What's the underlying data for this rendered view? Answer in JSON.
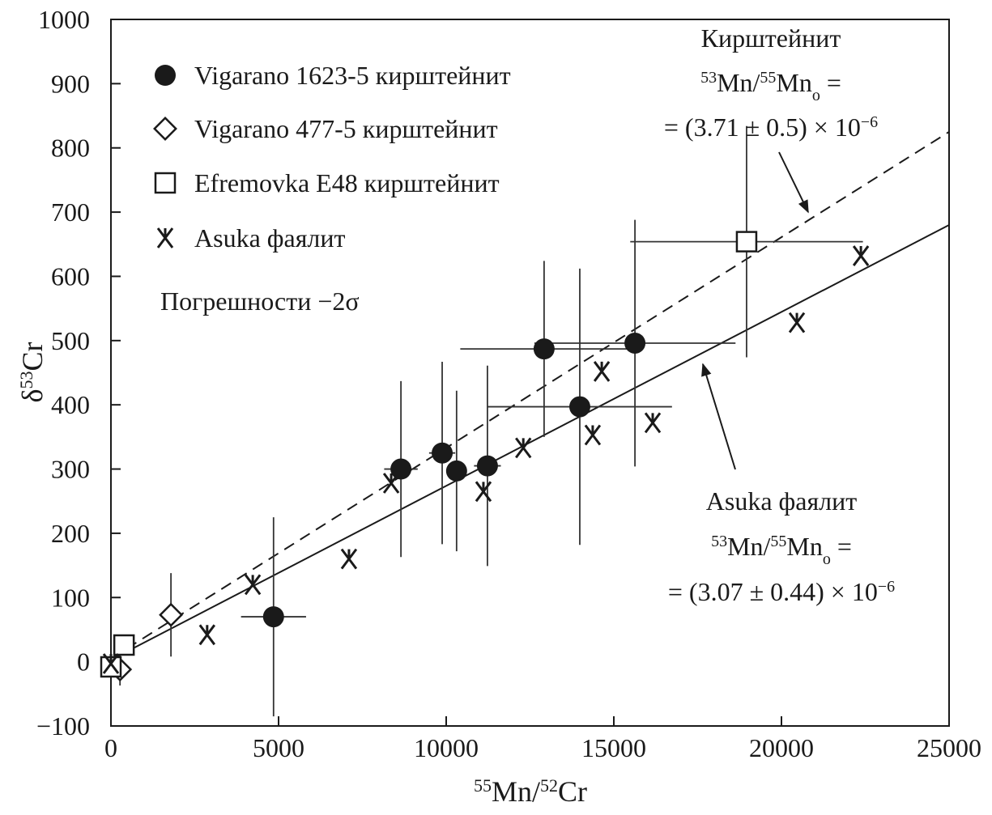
{
  "chart_data": {
    "type": "scatter",
    "xlabel": {
      "sup1": "55",
      "a": "Mn/",
      "sup2": "52",
      "b": "Cr"
    },
    "ylabel": {
      "a": "δ",
      "sup": "53",
      "b": "Cr"
    },
    "xlim": [
      0,
      25000
    ],
    "ylim": [
      -100,
      1000
    ],
    "xticks": [
      0,
      5000,
      10000,
      15000,
      20000,
      25000
    ],
    "xtick_labels": [
      "0",
      "5000",
      "10000",
      "15000",
      "20000",
      "25000"
    ],
    "yticks": [
      -100,
      0,
      100,
      200,
      300,
      400,
      500,
      600,
      700,
      800,
      900,
      1000
    ],
    "ytick_labels": [
      "−100",
      "0",
      "100",
      "200",
      "300",
      "400",
      "500",
      "600",
      "700",
      "800",
      "900",
      "1000"
    ],
    "grid": false,
    "legend_position": "top-left",
    "note": "Погрешности −2σ",
    "series": [
      {
        "name": "Vigarano 1623-5 кирштейнит",
        "marker": "filled-circle",
        "points": [
          {
            "x": 4850,
            "y": 70,
            "xerr": 970,
            "yerr": 155
          },
          {
            "x": 8650,
            "y": 300,
            "xerr": 500,
            "yerr": 137
          },
          {
            "x": 9880,
            "y": 325,
            "xerr": 390,
            "yerr": 142
          },
          {
            "x": 10310,
            "y": 297,
            "xerr": 300,
            "yerr": 125
          },
          {
            "x": 11230,
            "y": 305,
            "xerr": 400,
            "yerr": 156
          },
          {
            "x": 12920,
            "y": 487,
            "xerr": 2500,
            "yerr": 137
          },
          {
            "x": 13985,
            "y": 397,
            "xerr": 2750,
            "yerr": 215
          },
          {
            "x": 15630,
            "y": 496,
            "xerr": 3000,
            "yerr": 192
          }
        ]
      },
      {
        "name": "Vigarano 477-5 кирштейнит",
        "marker": "open-diamond",
        "points": [
          {
            "x": 1790,
            "y": 73,
            "xerr": 0,
            "yerr": 65
          },
          {
            "x": 270,
            "y": -12,
            "xerr": 0,
            "yerr": 25
          }
        ]
      },
      {
        "name": "Efremovka E48 кирштейнит",
        "marker": "open-square",
        "points": [
          {
            "x": 390,
            "y": 26,
            "xerr": 0,
            "yerr": 0
          },
          {
            "x": 0,
            "y": -8,
            "xerr": 0,
            "yerr": 0
          },
          {
            "x": 18960,
            "y": 654,
            "xerr": 3470,
            "yerr": 180
          }
        ]
      },
      {
        "name": "Asuka фаялит",
        "marker": "asterisk",
        "points": [
          {
            "x": 0,
            "y": -3
          },
          {
            "x": 2870,
            "y": 42
          },
          {
            "x": 4230,
            "y": 120
          },
          {
            "x": 7100,
            "y": 160
          },
          {
            "x": 8360,
            "y": 278
          },
          {
            "x": 11110,
            "y": 265
          },
          {
            "x": 12300,
            "y": 333
          },
          {
            "x": 14370,
            "y": 353
          },
          {
            "x": 14640,
            "y": 452
          },
          {
            "x": 16160,
            "y": 372
          },
          {
            "x": 20460,
            "y": 528
          },
          {
            "x": 22370,
            "y": 632
          }
        ]
      }
    ],
    "fit_lines": [
      {
        "name": "Кирштейнит",
        "style": "dashed",
        "x": [
          0,
          25000
        ],
        "y": [
          5,
          825
        ]
      },
      {
        "name": "Asuka фаялит",
        "style": "solid",
        "x": [
          0,
          25000
        ],
        "y": [
          3,
          680
        ]
      }
    ],
    "annotations": {
      "kirsh": {
        "title": "Кирштейнит",
        "l2_sup1": "53",
        "l2_a": "Mn/",
        "l2_sup2": "55",
        "l2_b": "Mn",
        "l2_sub": "o",
        "l2_c": " =",
        "l3": "= (3.71 ± 0.5) × 10",
        "l3_sup": "−6"
      },
      "asuka": {
        "title": "Asuka фаялит",
        "l2_sup1": "53",
        "l2_a": "Mn/",
        "l2_sup2": "55",
        "l2_b": "Mn",
        "l2_sub": "o",
        "l2_c": " =",
        "l3": "= (3.07 ± 0.44) × 10",
        "l3_sup": "−6"
      }
    }
  }
}
